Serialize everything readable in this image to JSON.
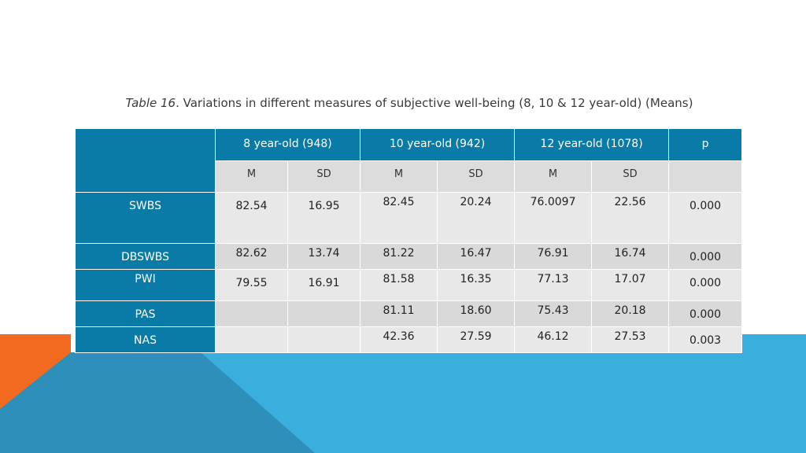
{
  "caption": {
    "italic": "Table  16",
    "text": ". Variations in different measures of subjective well-being (8, 10 & 12 year-old) (Means)"
  },
  "header": {
    "groups": [
      "8 year-old (948)",
      "10 year-old (942)",
      "12 year-old (1078)",
      "p"
    ],
    "sub": [
      "M",
      "SD",
      "M",
      "SD",
      "M",
      "SD"
    ]
  },
  "rows": [
    {
      "label": "SWBS",
      "values": [
        "82.54",
        "16.95",
        "82.45",
        "20.24",
        "76.0097",
        "22.56",
        "0.000"
      ]
    },
    {
      "label": "DBSWBS",
      "values": [
        "82.62",
        "13.74",
        "81.22",
        "16.47",
        "76.91",
        "16.74",
        "0.000"
      ]
    },
    {
      "label": "PWI",
      "values": [
        "79.55",
        "16.91",
        "81.58",
        "16.35",
        "77.13",
        "17.07",
        "0.000"
      ]
    },
    {
      "label": "PAS",
      "values": [
        "",
        "",
        "81.11",
        "18.60",
        "75.43",
        "20.18",
        "0.000"
      ]
    },
    {
      "label": "NAS",
      "values": [
        "",
        "",
        "42.36",
        "27.59",
        "46.12",
        "27.53",
        "0.003"
      ]
    }
  ],
  "colors": {
    "header": "#0a7aa6",
    "accent_orange": "#f26b21",
    "accent_blue": "#3aaedc",
    "accent_dark": "#2e8fba"
  }
}
